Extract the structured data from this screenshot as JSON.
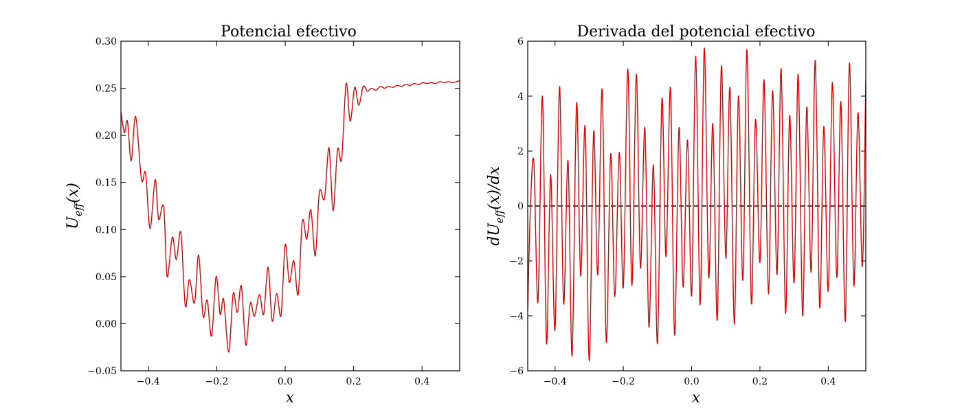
{
  "chart_data": [
    {
      "type": "line",
      "title": "Potencial efectivo",
      "xlabel": "x",
      "ylabel": "U_eff(x)",
      "ylabel_main": "U",
      "ylabel_sub": "eff",
      "ylabel_arg": "(x)",
      "xlim": [
        -0.48,
        0.51
      ],
      "ylim": [
        -0.05,
        0.3
      ],
      "xticks": [
        -0.4,
        -0.2,
        0.0,
        0.2,
        0.4
      ],
      "xtick_labels": [
        "−0.4",
        "−0.2",
        "0.0",
        "0.2",
        "0.4"
      ],
      "yticks": [
        -0.05,
        0.0,
        0.05,
        0.1,
        0.15,
        0.2,
        0.25,
        0.3
      ],
      "ytick_labels": [
        "−0.05",
        "0.00",
        "0.05",
        "0.10",
        "0.15",
        "0.20",
        "0.25",
        "0.30"
      ],
      "grid": false,
      "color": "#e00000",
      "series": [
        {
          "x": [
            -0.48,
            -0.47,
            -0.461,
            -0.45,
            -0.437,
            -0.42,
            -0.408,
            -0.395,
            -0.38,
            -0.37,
            -0.355,
            -0.345,
            -0.33,
            -0.318,
            -0.305,
            -0.292,
            -0.28,
            -0.265,
            -0.253,
            -0.24,
            -0.228,
            -0.215,
            -0.202,
            -0.19,
            -0.18,
            -0.165,
            -0.152,
            -0.14,
            -0.128,
            -0.115,
            -0.102,
            -0.09,
            -0.075,
            -0.063,
            -0.05,
            -0.038,
            -0.025,
            -0.012,
            0.0,
            0.012,
            0.025,
            0.038,
            0.05,
            0.063,
            0.075,
            0.088,
            0.1,
            0.115,
            0.128,
            0.14,
            0.153,
            0.165,
            0.178,
            0.19,
            0.203,
            0.215,
            0.228,
            0.24,
            0.252,
            0.265,
            0.278,
            0.29,
            0.302,
            0.315,
            0.327,
            0.34,
            0.352,
            0.365,
            0.377,
            0.39,
            0.402,
            0.415,
            0.427,
            0.44,
            0.452,
            0.465,
            0.477,
            0.49,
            0.51
          ],
          "y": [
            0.225,
            0.203,
            0.215,
            0.173,
            0.22,
            0.153,
            0.16,
            0.101,
            0.153,
            0.111,
            0.124,
            0.05,
            0.092,
            0.068,
            0.097,
            0.019,
            0.047,
            0.022,
            0.073,
            0.008,
            0.025,
            -0.013,
            0.05,
            0.01,
            0.026,
            -0.03,
            0.032,
            0.012,
            0.04,
            -0.023,
            0.022,
            0.008,
            0.031,
            0.01,
            0.06,
            0.003,
            0.032,
            0.009,
            0.084,
            0.044,
            0.067,
            0.031,
            0.109,
            0.09,
            0.121,
            0.072,
            0.14,
            0.133,
            0.187,
            0.12,
            0.185,
            0.175,
            0.255,
            0.215,
            0.251,
            0.232,
            0.252,
            0.247,
            0.25,
            0.248,
            0.252,
            0.25,
            0.252,
            0.251,
            0.253,
            0.252,
            0.254,
            0.253,
            0.255,
            0.254,
            0.256,
            0.255,
            0.256,
            0.255,
            0.257,
            0.256,
            0.257,
            0.256,
            0.258
          ]
        }
      ]
    },
    {
      "type": "line",
      "title": "Derivada del potencial efectivo",
      "xlabel": "x",
      "ylabel": "dU_eff(x)/dx",
      "ylabel_main": "dU",
      "ylabel_sub": "eff",
      "ylabel_arg": "(x)/dx",
      "xlim": [
        -0.48,
        0.51
      ],
      "ylim": [
        -6,
        6
      ],
      "xticks": [
        -0.4,
        -0.2,
        0.0,
        0.2,
        0.4
      ],
      "xtick_labels": [
        "−0.4",
        "−0.2",
        "0.0",
        "0.2",
        "0.4"
      ],
      "yticks": [
        -6,
        -4,
        -2,
        0,
        2,
        4,
        6
      ],
      "ytick_labels": [
        "−6",
        "−4",
        "−2",
        "0",
        "2",
        "4",
        "6"
      ],
      "grid": false,
      "color": "#e00000",
      "reference_line_y": 0,
      "series": [
        {
          "x": [
            -0.48,
            -0.472,
            -0.462,
            -0.45,
            -0.437,
            -0.425,
            -0.413,
            -0.4,
            -0.387,
            -0.375,
            -0.362,
            -0.35,
            -0.337,
            -0.325,
            -0.312,
            -0.3,
            -0.287,
            -0.275,
            -0.262,
            -0.25,
            -0.237,
            -0.225,
            -0.212,
            -0.2,
            -0.187,
            -0.175,
            -0.162,
            -0.15,
            -0.137,
            -0.125,
            -0.112,
            -0.1,
            -0.087,
            -0.075,
            -0.062,
            -0.05,
            -0.037,
            -0.025,
            -0.012,
            0.0,
            0.012,
            0.025,
            0.037,
            0.05,
            0.062,
            0.075,
            0.087,
            0.1,
            0.112,
            0.125,
            0.137,
            0.15,
            0.162,
            0.175,
            0.187,
            0.2,
            0.212,
            0.225,
            0.237,
            0.25,
            0.262,
            0.275,
            0.287,
            0.3,
            0.312,
            0.325,
            0.337,
            0.35,
            0.362,
            0.375,
            0.387,
            0.4,
            0.412,
            0.425,
            0.437,
            0.45,
            0.462,
            0.475,
            0.487,
            0.5,
            0.51
          ],
          "y": [
            -3.8,
            0.0,
            1.6,
            -3.5,
            4.0,
            -5.0,
            1.15,
            -4.5,
            4.35,
            -3.55,
            1.65,
            -5.45,
            3.75,
            -2.55,
            2.9,
            -5.65,
            2.7,
            -2.5,
            4.25,
            -4.95,
            1.9,
            -3.3,
            1.95,
            -2.95,
            5.0,
            -2.9,
            4.8,
            -2.25,
            2.85,
            -4.4,
            1.5,
            -5.0,
            3.9,
            -1.85,
            4.3,
            -4.7,
            2.85,
            -2.95,
            2.4,
            -3.25,
            5.45,
            -3.6,
            5.75,
            -2.6,
            3.0,
            -4.15,
            5.1,
            -1.9,
            4.3,
            -4.3,
            4.0,
            -2.7,
            5.7,
            -3.55,
            3.15,
            -2.05,
            4.6,
            -3.2,
            4.2,
            -2.5,
            5.0,
            -3.9,
            3.3,
            -2.8,
            4.8,
            -4.0,
            3.6,
            -2.4,
            5.3,
            -3.7,
            2.9,
            -3.1,
            4.5,
            -2.6,
            3.8,
            -4.2,
            5.2,
            -2.9,
            3.4,
            -2.2,
            4.6
          ]
        }
      ]
    }
  ]
}
